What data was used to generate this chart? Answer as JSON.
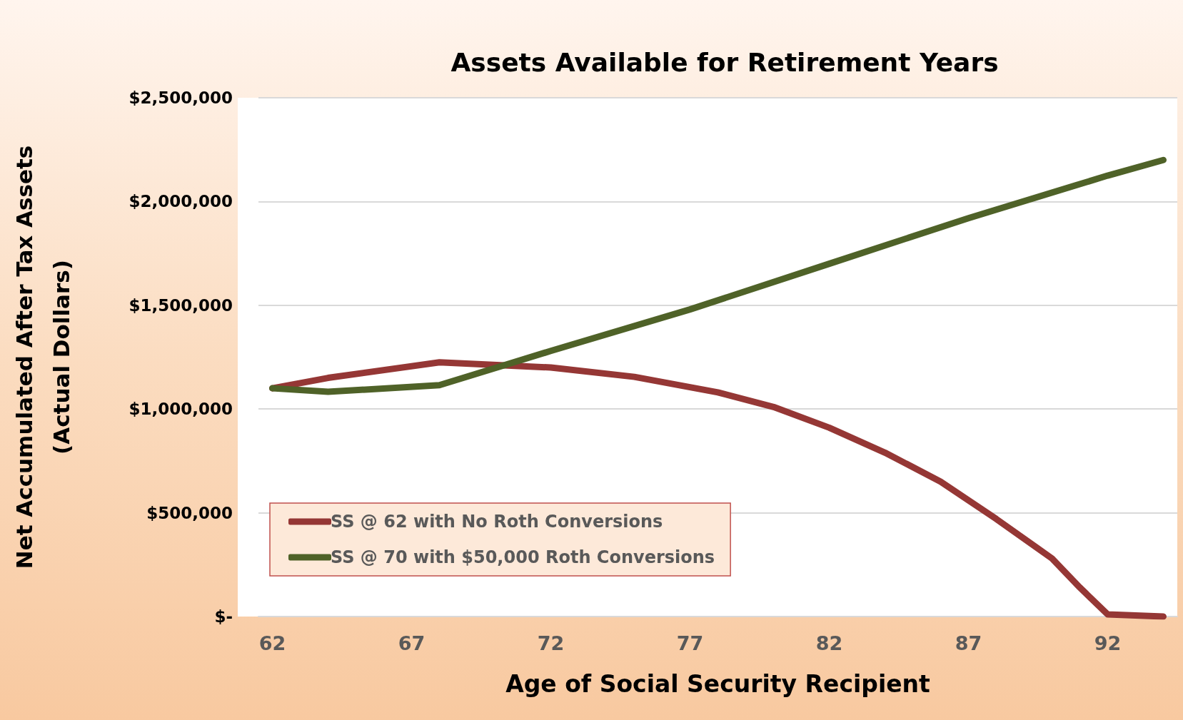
{
  "chart_data": {
    "type": "line",
    "title": "Assets Available for Retirement Years",
    "xlabel": "Age of Social Security Recipient",
    "ylabel": "Net Accumulated After Tax Assets\n(Actual Dollars)",
    "series": [
      {
        "name": "SS @ 62 with No Roth Conversions",
        "color": "#953735",
        "x": [
          62,
          64,
          68,
          72,
          75,
          78,
          80,
          82,
          84,
          86,
          88,
          90,
          91,
          92,
          94
        ],
        "values": [
          1100000,
          1150000,
          1225000,
          1200000,
          1155000,
          1080000,
          1010000,
          910000,
          790000,
          650000,
          470000,
          280000,
          140000,
          10000,
          0
        ]
      },
      {
        "name": "SS @ 70 with $50,000 Roth Conversions",
        "color": "#4f6228",
        "x": [
          62,
          64,
          68,
          72,
          77,
          82,
          87,
          92,
          94
        ],
        "values": [
          1100000,
          1083000,
          1115000,
          1280000,
          1480000,
          1700000,
          1920000,
          2125000,
          2200000
        ]
      }
    ],
    "xlim": [
      61.5,
      94.5
    ],
    "xticks": [
      62,
      67,
      72,
      77,
      82,
      87,
      92
    ],
    "ylim": [
      0,
      2500000
    ],
    "yticks": [
      {
        "value": 0,
        "label": "$-"
      },
      {
        "value": 500000,
        "label": "$500,000"
      },
      {
        "value": 1000000,
        "label": "$1,000,000"
      },
      {
        "value": 1500000,
        "label": "$1,500,000"
      },
      {
        "value": 2000000,
        "label": "$2,000,000"
      },
      {
        "value": 2500000,
        "label": "$2,500,000"
      }
    ],
    "grid": "y",
    "legend": "bottom left",
    "marker": "none",
    "line_style": "solid"
  }
}
